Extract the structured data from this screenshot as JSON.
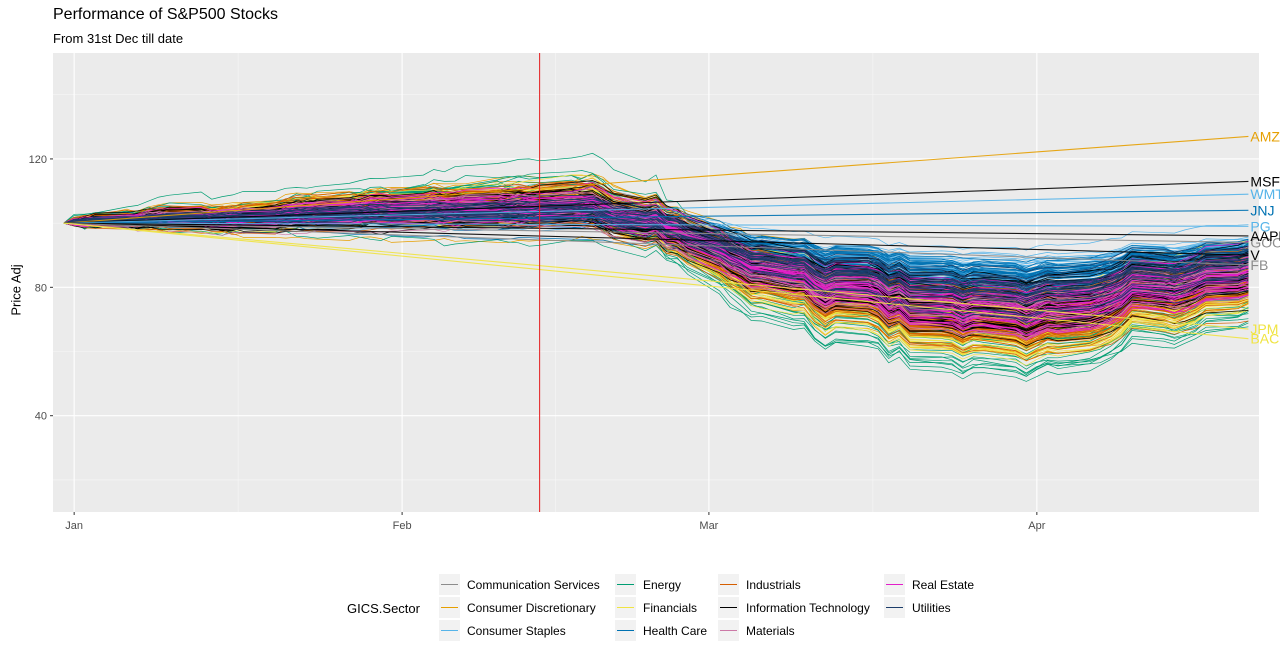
{
  "chart_data": {
    "type": "line",
    "title": "Performance of S&P500 Stocks",
    "subtitle": "From 31st Dec till date",
    "xlabel": "",
    "ylabel": "Price Adj",
    "x_ticks": [
      "Jan",
      "Feb",
      "Mar",
      "Apr"
    ],
    "x_range": [
      "2019-12-30",
      "2020-04-22"
    ],
    "y_ticks": [
      40,
      80,
      120
    ],
    "ylim": [
      10,
      153
    ],
    "grid": true,
    "vline": {
      "date": "2020-02-14",
      "color": "#e41a1c"
    },
    "legend": {
      "title": "GICS.Sector",
      "placement": "bottom",
      "entries": [
        {
          "name": "Communication Services",
          "color": "#8c8c8c"
        },
        {
          "name": "Consumer Discretionary",
          "color": "#e69f00"
        },
        {
          "name": "Consumer Staples",
          "color": "#56b4e9"
        },
        {
          "name": "Energy",
          "color": "#009e73"
        },
        {
          "name": "Financials",
          "color": "#f0e442"
        },
        {
          "name": "Health Care",
          "color": "#0072b2"
        },
        {
          "name": "Industrials",
          "color": "#d55e00"
        },
        {
          "name": "Information Technology",
          "color": "#000000"
        },
        {
          "name": "Materials",
          "color": "#cc79a7"
        },
        {
          "name": "Real Estate",
          "color": "#e21fc9"
        },
        {
          "name": "Utilities",
          "color": "#1c3d6a"
        }
      ]
    },
    "labeled_series": [
      {
        "name": "AMZN",
        "sector": "Consumer Discretionary",
        "start": "2019-12-31",
        "start_value": 100,
        "end": "2020-04-21",
        "end_value": 127
      },
      {
        "name": "MSFT",
        "sector": "Information Technology",
        "start": "2019-12-31",
        "start_value": 100,
        "end": "2020-04-21",
        "end_value": 113
      },
      {
        "name": "WMT",
        "sector": "Consumer Staples",
        "start": "2019-12-31",
        "start_value": 100,
        "end": "2020-04-21",
        "end_value": 109
      },
      {
        "name": "JNJ",
        "sector": "Health Care",
        "start": "2019-12-31",
        "start_value": 100,
        "end": "2020-04-21",
        "end_value": 104
      },
      {
        "name": "PG",
        "sector": "Consumer Staples",
        "start": "2019-12-31",
        "start_value": 100,
        "end": "2020-04-21",
        "end_value": 99
      },
      {
        "name": "GOOGL",
        "sector": "Communication Services",
        "start": "2019-12-31",
        "start_value": 100,
        "end": "2020-04-21",
        "end_value": 94
      },
      {
        "name": "AAPL",
        "sector": "Information Technology",
        "start": "2019-12-31",
        "start_value": 100,
        "end": "2020-04-21",
        "end_value": 96
      },
      {
        "name": "V",
        "sector": "Information Technology",
        "start": "2019-12-31",
        "start_value": 100,
        "end": "2020-04-21",
        "end_value": 90
      },
      {
        "name": "FB",
        "sector": "Communication Services",
        "start": "2019-12-31",
        "start_value": 100,
        "end": "2020-04-21",
        "end_value": 87
      },
      {
        "name": "JPM",
        "sector": "Financials",
        "start": "2019-12-31",
        "start_value": 100,
        "end": "2020-04-21",
        "end_value": 67
      },
      {
        "name": "BAC",
        "sector": "Financials",
        "start": "2019-12-31",
        "start_value": 100,
        "end": "2020-04-21",
        "end_value": 64
      }
    ]
  }
}
